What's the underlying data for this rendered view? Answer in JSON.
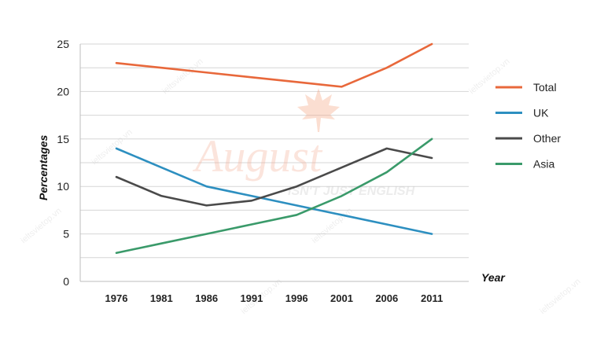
{
  "chart_data": {
    "type": "line",
    "xlabel": "Year",
    "ylabel": "Percentages",
    "x": [
      "1976",
      "1981",
      "1986",
      "1991",
      "1996",
      "2001",
      "2006",
      "2011"
    ],
    "ylim": [
      0,
      25
    ],
    "yticks": [
      0,
      5,
      10,
      15,
      20,
      25
    ],
    "grid": true,
    "legend_position": "right",
    "series": [
      {
        "name": "Total",
        "color": "#e8683b",
        "values": [
          23,
          22.5,
          22,
          21.5,
          21,
          20.5,
          22.5,
          25
        ]
      },
      {
        "name": "UK",
        "color": "#2d8fc0",
        "values": [
          14,
          12,
          10,
          9,
          8,
          7,
          6,
          5
        ]
      },
      {
        "name": "Other",
        "color": "#4a4a4a",
        "values": [
          11,
          9,
          8,
          8.5,
          10,
          12,
          14,
          13
        ]
      },
      {
        "name": "Asia",
        "color": "#3a9a6a",
        "values": [
          3,
          4,
          5,
          6,
          7,
          9,
          11.5,
          15
        ]
      }
    ]
  },
  "watermark": {
    "brand": "August",
    "tagline": "ISN'T JUST ENGLISH",
    "site": "ieltsvietop.vn"
  }
}
